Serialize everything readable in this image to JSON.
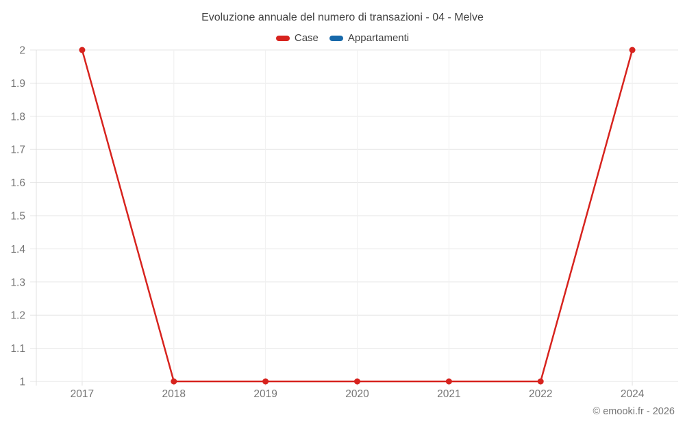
{
  "header": {
    "title": "Evoluzione annuale del numero di transazioni - 04 - Melve"
  },
  "legend": {
    "items": [
      {
        "label": "Case",
        "color": "#d7231e"
      },
      {
        "label": "Appartamenti",
        "color": "#1769aa"
      }
    ]
  },
  "watermark": {
    "text": "© emooki.fr - 2026"
  },
  "colors": {
    "title_text": "#424242",
    "axis_label_text": "#757575",
    "h_gridline": "#e6e6e6",
    "v_gridline": "#f0f0f0",
    "axis_line": "#e0e0e0"
  },
  "chart_data": {
    "type": "line",
    "title": "Evoluzione annuale del numero di transazioni - 04 - Melve",
    "categories": [
      "2017",
      "2018",
      "2019",
      "2020",
      "2021",
      "2022",
      "2024"
    ],
    "series": [
      {
        "name": "Case",
        "color": "#d7231e",
        "values": [
          2,
          1,
          1,
          1,
          1,
          1,
          2
        ]
      },
      {
        "name": "Appartamenti",
        "color": "#1769aa",
        "values": []
      }
    ],
    "xlabel": "",
    "ylabel": "",
    "ylim": [
      1,
      2
    ],
    "ytick_labels": [
      "1",
      "1.1",
      "1.2",
      "1.3",
      "1.4",
      "1.5",
      "1.6",
      "1.7",
      "1.8",
      "1.9",
      "2"
    ],
    "grid": true,
    "legend_position": "top",
    "marker": "circle"
  }
}
